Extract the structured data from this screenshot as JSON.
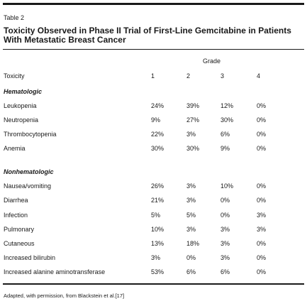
{
  "table": {
    "label": "Table 2",
    "title": "Toxicity Observed in Phase II Trial of First-Line Gemcitabine in Patients With Metastatic Breast Cancer",
    "grade_header": "Grade",
    "columns": [
      "Toxicity",
      "1",
      "2",
      "3",
      "4"
    ],
    "sections": [
      {
        "title": "Hematologic",
        "rows": [
          [
            "Leukopenia",
            "24%",
            "39%",
            "12%",
            "0%"
          ],
          [
            "Neutropenia",
            "9%",
            "27%",
            "30%",
            "0%"
          ],
          [
            "Thrombocytopenia",
            "22%",
            "3%",
            "6%",
            "0%"
          ],
          [
            "Anemia",
            "30%",
            "30%",
            "9%",
            "0%"
          ]
        ]
      },
      {
        "title": "Nonhematologic",
        "rows": [
          [
            "Nausea/vomiting",
            "26%",
            "3%",
            "10%",
            "0%"
          ],
          [
            "Diarrhea",
            "21%",
            "3%",
            "0%",
            "0%"
          ],
          [
            "Infection",
            "5%",
            "5%",
            "0%",
            "3%"
          ],
          [
            "Pulmonary",
            "10%",
            "3%",
            "3%",
            "3%"
          ],
          [
            "Cutaneous",
            "13%",
            "18%",
            "3%",
            "0%"
          ],
          [
            "Increased bilirubin",
            "3%",
            "0%",
            "3%",
            "0%"
          ],
          [
            "Increased alanine aminotransferase",
            "53%",
            "6%",
            "6%",
            "0%"
          ]
        ]
      }
    ],
    "footnote": "Adapted, with permission, from Blackstein et al.[17]"
  }
}
